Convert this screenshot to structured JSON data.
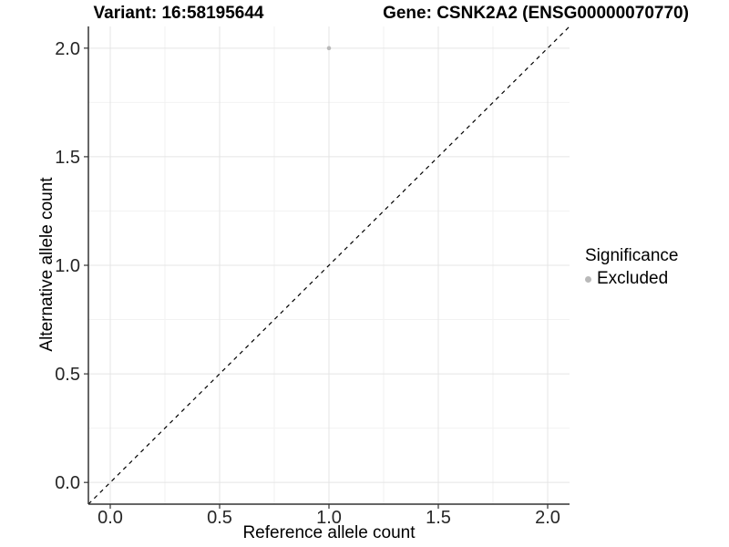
{
  "titles": {
    "variant": "Variant: 16:58195644",
    "gene": "Gene: CSNK2A2 (ENSG00000070770)"
  },
  "chart_data": {
    "type": "scatter",
    "xlabel": "Reference allele count",
    "ylabel": "Alternative allele count",
    "xlim": [
      -0.1,
      2.1
    ],
    "ylim": [
      -0.1,
      2.1
    ],
    "x_ticks": [
      0,
      0.5,
      1,
      1.5,
      2
    ],
    "x_tick_labels": [
      "0.0",
      "0.5",
      "1.0",
      "1.5",
      "2.0"
    ],
    "y_ticks": [
      0,
      0.5,
      1,
      1.5,
      2
    ],
    "y_tick_labels": [
      "0.0",
      "0.5",
      "1.0",
      "1.5",
      "2.0"
    ],
    "x_minor_ticks": [
      0.25,
      0.75,
      1.25,
      1.75
    ],
    "y_minor_ticks": [
      0.25,
      0.75,
      1.25,
      1.75
    ],
    "grid": "major+minor",
    "series": [
      {
        "name": "Excluded",
        "color": "#b9b9b9",
        "points": [
          {
            "x": 1.0,
            "y": 2.0
          }
        ]
      }
    ],
    "reference_line": {
      "type": "identity y=x",
      "style": "dashed",
      "color": "#000000"
    },
    "legend": {
      "title": "Significance",
      "position": "right",
      "items": [
        {
          "label": "Excluded",
          "color": "#b9b9b9"
        }
      ]
    },
    "colors": {
      "background": "#ffffff",
      "grid_major": "#e5e5e5",
      "grid_minor": "#f2f2f2",
      "axis_line": "#333333",
      "axis_text": "#262626",
      "point": "#b9b9b9"
    }
  }
}
